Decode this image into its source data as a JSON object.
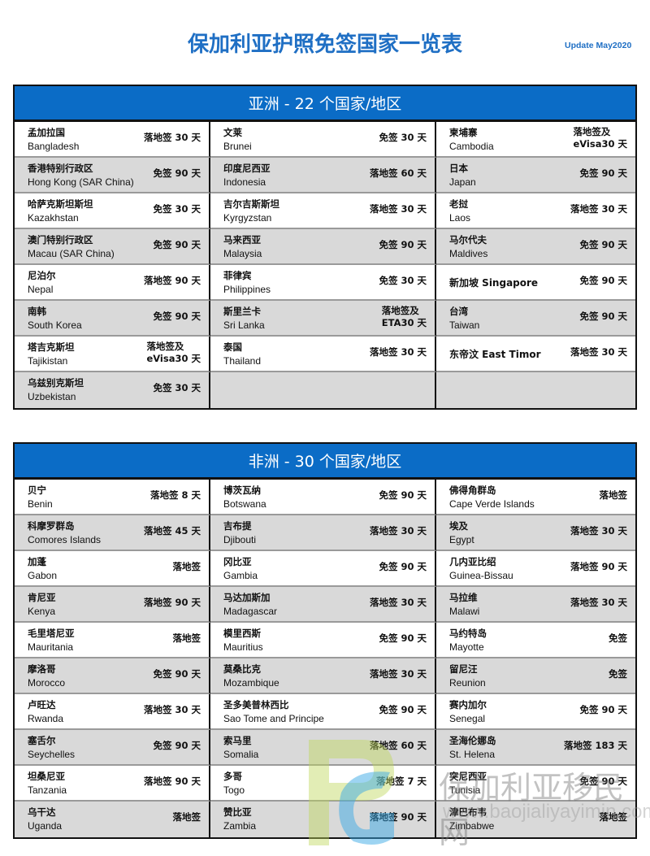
{
  "title": "保加利亚护照免签国家一览表",
  "update": "Update May2020",
  "watermark": {
    "text": "保加利亚移民网",
    "url": "www.baojialiyayimin.com"
  },
  "sections": [
    {
      "heading": "亚洲 - 22 个国家/地区",
      "cells": [
        {
          "zh": "孟加拉国",
          "en": "Bangladesh",
          "status": "落地签 30 天"
        },
        {
          "zh": "文莱",
          "en": "Brunei",
          "status": "免签 30 天"
        },
        {
          "zh": "柬埔寨",
          "en": "Cambodia",
          "status": "落地签及\neVisa30 天"
        },
        {
          "zh": "香港特别行政区",
          "en": "Hong Kong (SAR China)",
          "status": "免签 90 天"
        },
        {
          "zh": "印度尼西亚",
          "en": "Indonesia",
          "status": "落地签 60 天"
        },
        {
          "zh": "日本",
          "en": "Japan",
          "status": "免签 90 天"
        },
        {
          "zh": "哈萨克斯坦斯坦",
          "en": "Kazakhstan",
          "status": "免签 30 天"
        },
        {
          "zh": "吉尔吉斯斯坦",
          "en": "Kyrgyzstan",
          "status": "落地签 30 天"
        },
        {
          "zh": "老挝",
          "en": "Laos",
          "status": "落地签 30 天"
        },
        {
          "zh": "澳门特别行政区",
          "en": "Macau (SAR China)",
          "status": "免签 90 天"
        },
        {
          "zh": "马来西亚",
          "en": "Malaysia",
          "status": "免签 90 天"
        },
        {
          "zh": "马尔代夫",
          "en": "Maldives",
          "status": "免签 90 天"
        },
        {
          "zh": "尼泊尔",
          "en": "Nepal",
          "status": "落地签 90 天"
        },
        {
          "zh": "菲律宾",
          "en": "Philippines",
          "status": "免签 30 天"
        },
        {
          "zh": "新加坡 Singapore",
          "en": "",
          "status": "免签 90 天"
        },
        {
          "zh": "南韩",
          "en": "South Korea",
          "status": "免签 90 天"
        },
        {
          "zh": "斯里兰卡",
          "en": "Sri Lanka",
          "status": "落地签及\nETA30 天"
        },
        {
          "zh": "台湾",
          "en": "Taiwan",
          "status": "免签 90 天"
        },
        {
          "zh": "塔吉克斯坦",
          "en": "Tajikistan",
          "status": "落地签及\neVisa30 天"
        },
        {
          "zh": "泰国",
          "en": "Thailand",
          "status": "落地签 30 天"
        },
        {
          "zh": "东帝汶 East Timor",
          "en": "",
          "status": "落地签 30 天"
        },
        {
          "zh": "乌兹别克斯坦",
          "en": "Uzbekistan",
          "status": "免签 30 天"
        },
        {
          "zh": "",
          "en": "",
          "status": ""
        },
        {
          "zh": "",
          "en": "",
          "status": ""
        }
      ]
    },
    {
      "heading": "非洲 - 30 个国家/地区",
      "cells": [
        {
          "zh": "贝宁",
          "en": "Benin",
          "status": "落地签 8 天"
        },
        {
          "zh": "博茨瓦纳",
          "en": "Botswana",
          "status": "免签 90 天"
        },
        {
          "zh": "佛得角群岛",
          "en": "Cape Verde Islands",
          "status": "落地签"
        },
        {
          "zh": "科摩罗群岛",
          "en": "Comores Islands",
          "status": "落地签 45 天"
        },
        {
          "zh": "吉布提",
          "en": "Djibouti",
          "status": "落地签 30 天"
        },
        {
          "zh": "埃及",
          "en": "Egypt",
          "status": "落地签 30 天"
        },
        {
          "zh": "加蓬",
          "en": "Gabon",
          "status": "落地签"
        },
        {
          "zh": "冈比亚",
          "en": "Gambia",
          "status": "免签 90 天"
        },
        {
          "zh": "几内亚比绍",
          "en": "Guinea-Bissau",
          "status": "落地签 90 天"
        },
        {
          "zh": "肯尼亚",
          "en": "Kenya",
          "status": "落地签 90 天"
        },
        {
          "zh": "马达加斯加",
          "en": "Madagascar",
          "status": "落地签 30 天"
        },
        {
          "zh": "马拉维",
          "en": "Malawi",
          "status": "落地签 30 天"
        },
        {
          "zh": "毛里塔尼亚",
          "en": "Mauritania",
          "status": "落地签"
        },
        {
          "zh": "模里西斯",
          "en": "Mauritius",
          "status": "免签 90 天"
        },
        {
          "zh": "马约特岛",
          "en": "Mayotte",
          "status": "免签"
        },
        {
          "zh": "摩洛哥",
          "en": "Morocco",
          "status": "免签 90 天"
        },
        {
          "zh": "莫桑比克",
          "en": "Mozambique",
          "status": "落地签 30 天"
        },
        {
          "zh": "留尼汪",
          "en": "Reunion",
          "status": "免签"
        },
        {
          "zh": "卢旺达",
          "en": "Rwanda",
          "status": "落地签 30 天"
        },
        {
          "zh": "圣多美普林西比",
          "en": "Sao Tome and Principe",
          "status": "免签 90 天"
        },
        {
          "zh": "赛内加尔",
          "en": "Senegal",
          "status": "免签 90 天"
        },
        {
          "zh": "塞舌尔",
          "en": "Seychelles",
          "status": "免签 90 天"
        },
        {
          "zh": "索马里",
          "en": "Somalia",
          "status": "落地签 60 天"
        },
        {
          "zh": "圣海伦娜岛",
          "en": "St. Helena",
          "status": "落地签 183 天"
        },
        {
          "zh": "坦桑尼亚",
          "en": "Tanzania",
          "status": "落地签 90 天"
        },
        {
          "zh": "多哥",
          "en": "Togo",
          "status": "落地签 7 天"
        },
        {
          "zh": "突尼西亚",
          "en": "Tunisia",
          "status": "免签 90 天"
        },
        {
          "zh": "乌干达",
          "en": "Uganda",
          "status": "落地签"
        },
        {
          "zh": "赞比亚",
          "en": "Zambia",
          "status": "落地签 90 天"
        },
        {
          "zh": "津巴布韦",
          "en": "Zimbabwe",
          "status": "落地签"
        }
      ]
    }
  ]
}
